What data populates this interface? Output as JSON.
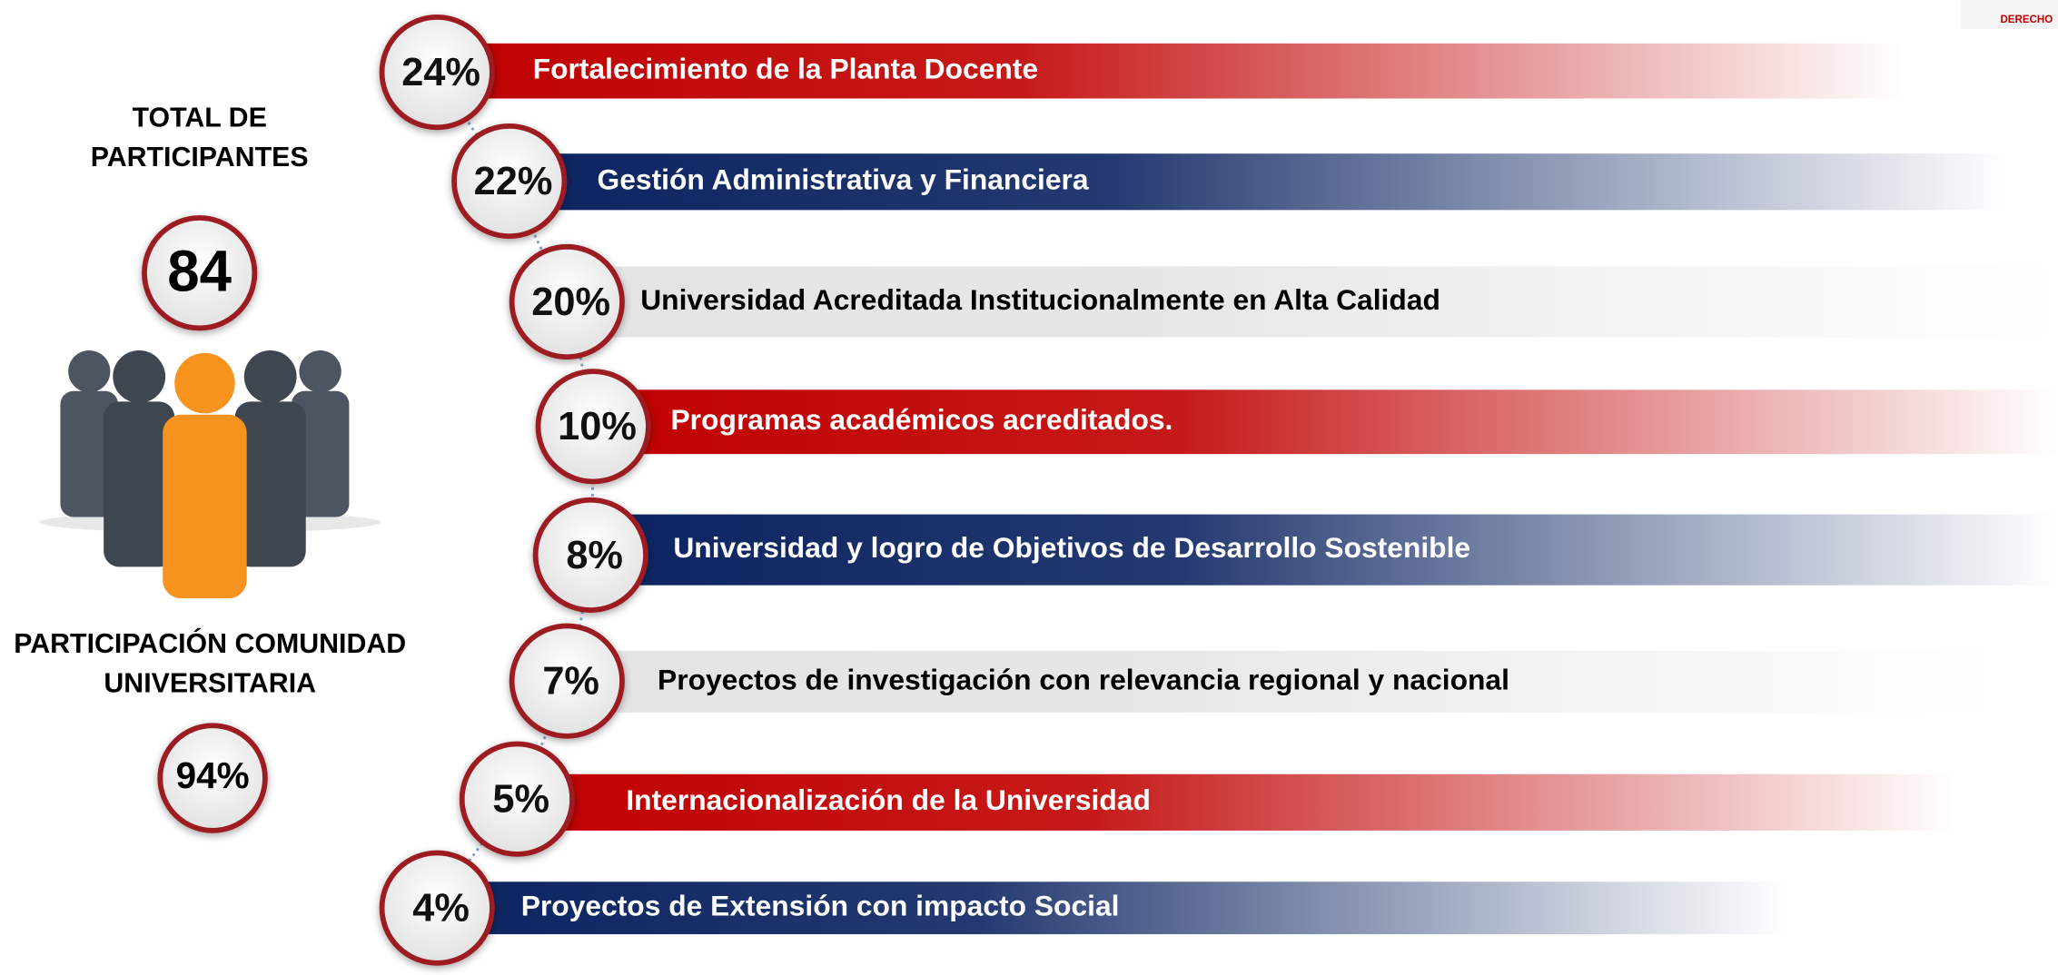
{
  "left": {
    "total_title": [
      "TOTAL DE",
      "PARTICIPANTES"
    ],
    "total": "84",
    "participation_title": [
      "PARTICIPACIÓN COMUNIDAD",
      "UNIVERSITARIA"
    ],
    "participation": "94%"
  },
  "items": [
    {
      "percent": "24%",
      "label": "Fortalecimiento de la Planta Docente",
      "color": "#c00000",
      "text_color": "#ffffff"
    },
    {
      "percent": "22%",
      "label": "Gestión Administrativa y Financiera",
      "color": "#0b2360",
      "text_color": "#ffffff"
    },
    {
      "percent": "20%",
      "label": "Universidad Acreditada Institucionalmente en Alta Calidad",
      "color": "#e4e4e4",
      "text_color": "#000000"
    },
    {
      "percent": "10%",
      "label": "Programas académicos acreditados.",
      "color": "#c00000",
      "text_color": "#ffffff"
    },
    {
      "percent": "8%",
      "label": "Universidad y logro de Objetivos de Desarrollo Sostenible",
      "color": "#0b2360",
      "text_color": "#ffffff"
    },
    {
      "percent": "7%",
      "label": "Proyectos de investigación con relevancia regional y nacional",
      "color": "#e4e4e4",
      "text_color": "#000000"
    },
    {
      "percent": "5%",
      "label": "Internacionalización de la Universidad",
      "color": "#c00000",
      "text_color": "#ffffff"
    },
    {
      "percent": "4%",
      "label": "Proyectos de Extensión con impacto Social",
      "color": "#0b2360",
      "text_color": "#ffffff"
    }
  ],
  "logo": {
    "text": "DERECHO"
  }
}
